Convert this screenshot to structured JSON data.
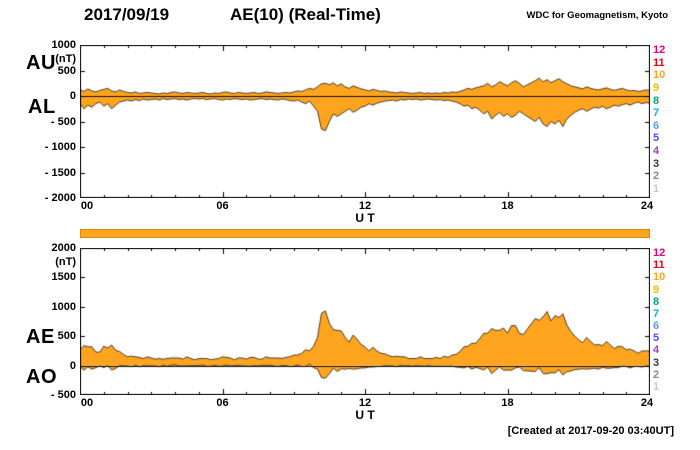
{
  "header": {
    "date": "2017/09/19",
    "title": "AE(10) (Real-Time)",
    "source": "WDC for Geomagnetism, Kyoto"
  },
  "footer": {
    "created": "[Created at 2017-09-20 03:40UT]"
  },
  "colors": {
    "plot_fill": "#FFA41E",
    "axis": "#000000",
    "background": "#FFFFFF"
  },
  "station_legend": {
    "values": [
      "12",
      "11",
      "10",
      "9",
      "8",
      "7",
      "6",
      "5",
      "4",
      "3",
      "2",
      "1"
    ],
    "colors": [
      "#E6007E",
      "#E60012",
      "#FFA41E",
      "#EDC000",
      "#00A878",
      "#00B8E6",
      "#6496FF",
      "#5050FF",
      "#A042C8",
      "#383838",
      "#8C8C8C",
      "#C8C8C8"
    ]
  },
  "chart_data": [
    {
      "type": "area",
      "panel": "top",
      "ylim": [
        -2000,
        1000
      ],
      "ylabel_unit": "(nT)",
      "y_ticks": [
        1000,
        500,
        0,
        -500,
        -1000,
        -1500,
        -2000
      ],
      "y_tick_labels": [
        "1000",
        "500",
        "0",
        "- 500",
        "- 1000",
        "- 1500",
        "- 2000"
      ],
      "x_ticks": [
        0,
        6,
        12,
        18,
        24
      ],
      "x_tick_labels": [
        "00",
        "06",
        "12",
        "18",
        "24"
      ],
      "x_label": "U T",
      "x_range_hours": [
        0,
        24
      ],
      "sample_interval_minutes": 10,
      "series": [
        {
          "name": "AU",
          "values": [
            120,
            90,
            140,
            100,
            80,
            110,
            130,
            150,
            100,
            80,
            120,
            90,
            70,
            60,
            80,
            50,
            60,
            70,
            60,
            50,
            40,
            60,
            50,
            70,
            80,
            60,
            50,
            70,
            60,
            50,
            60,
            70,
            50,
            40,
            60,
            50,
            70,
            80,
            60,
            50,
            70,
            60,
            50,
            60,
            70,
            50,
            60,
            80,
            70,
            60,
            50,
            60,
            70,
            60,
            80,
            100,
            90,
            120,
            150,
            130,
            180,
            240,
            250,
            220,
            260,
            200,
            240,
            180,
            150,
            200,
            170,
            140,
            120,
            100,
            130,
            110,
            90,
            100,
            80,
            70,
            60,
            80,
            70,
            60,
            50,
            60,
            70,
            50,
            60,
            50,
            60,
            50,
            70,
            60,
            80,
            70,
            90,
            120,
            150,
            130,
            160,
            180,
            200,
            250,
            180,
            220,
            280,
            240,
            200,
            260,
            300,
            250,
            180,
            220,
            260,
            300,
            350,
            280,
            320,
            260,
            300,
            340,
            280,
            240,
            200,
            180,
            160,
            140,
            180,
            150,
            130,
            120,
            140,
            160,
            130,
            110,
            130,
            150,
            120,
            100,
            110,
            90,
            100,
            120,
            110
          ]
        },
        {
          "name": "AL",
          "values": [
            -150,
            -250,
            -180,
            -220,
            -150,
            -120,
            -200,
            -150,
            -250,
            -180,
            -120,
            -100,
            -80,
            -100,
            -70,
            -90,
            -60,
            -80,
            -70,
            -60,
            -80,
            -50,
            -70,
            -60,
            -50,
            -70,
            -60,
            -80,
            -60,
            -50,
            -60,
            -50,
            -70,
            -60,
            -50,
            -70,
            -80,
            -60,
            -70,
            -50,
            -60,
            -70,
            -60,
            -80,
            -70,
            -60,
            -50,
            -70,
            -60,
            -70,
            -80,
            -60,
            -70,
            -90,
            -100,
            -80,
            -120,
            -150,
            -100,
            -200,
            -300,
            -650,
            -680,
            -500,
            -350,
            -400,
            -350,
            -300,
            -250,
            -320,
            -280,
            -220,
            -200,
            -150,
            -180,
            -140,
            -120,
            -100,
            -90,
            -80,
            -100,
            -70,
            -80,
            -60,
            -70,
            -60,
            -80,
            -70,
            -60,
            -70,
            -80,
            -70,
            -90,
            -80,
            -100,
            -120,
            -150,
            -200,
            -180,
            -250,
            -220,
            -280,
            -350,
            -300,
            -450,
            -380,
            -320,
            -400,
            -350,
            -420,
            -380,
            -300,
            -350,
            -400,
            -450,
            -500,
            -420,
            -550,
            -600,
            -500,
            -550,
            -480,
            -600,
            -450,
            -380,
            -320,
            -280,
            -250,
            -300,
            -260,
            -220,
            -240,
            -200,
            -250,
            -220,
            -180,
            -200,
            -170,
            -150,
            -180,
            -140,
            -120,
            -150,
            -130,
            -140
          ]
        }
      ]
    },
    {
      "type": "area",
      "panel": "bottom",
      "ylim": [
        -500,
        2000
      ],
      "ylabel_unit": "(nT)",
      "y_ticks": [
        2000,
        1500,
        1000,
        500,
        0,
        -500
      ],
      "y_tick_labels": [
        "2000",
        "1500",
        "1000",
        "500",
        "0",
        "- 500"
      ],
      "x_ticks": [
        0,
        6,
        12,
        18,
        24
      ],
      "x_tick_labels": [
        "00",
        "06",
        "12",
        "18",
        "24"
      ],
      "x_label": "U T",
      "x_range_hours": [
        0,
        24
      ],
      "sample_interval_minutes": 10,
      "series": [
        {
          "name": "AE",
          "values": [
            270,
            340,
            320,
            320,
            230,
            230,
            330,
            300,
            350,
            260,
            240,
            190,
            150,
            160,
            150,
            140,
            120,
            150,
            130,
            110,
            120,
            110,
            120,
            130,
            130,
            130,
            110,
            150,
            120,
            100,
            120,
            120,
            120,
            100,
            110,
            120,
            150,
            140,
            130,
            100,
            130,
            130,
            110,
            140,
            140,
            110,
            110,
            150,
            130,
            130,
            130,
            120,
            140,
            150,
            180,
            180,
            210,
            270,
            250,
            330,
            480,
            890,
            930,
            720,
            610,
            600,
            590,
            480,
            400,
            520,
            450,
            360,
            320,
            250,
            310,
            250,
            210,
            200,
            170,
            150,
            160,
            150,
            150,
            120,
            120,
            120,
            150,
            120,
            120,
            120,
            140,
            120,
            160,
            140,
            180,
            190,
            240,
            320,
            330,
            380,
            380,
            460,
            550,
            550,
            630,
            600,
            600,
            640,
            550,
            680,
            680,
            550,
            530,
            620,
            710,
            800,
            770,
            830,
            920,
            760,
            850,
            820,
            880,
            690,
            580,
            500,
            440,
            390,
            480,
            410,
            350,
            360,
            340,
            410,
            350,
            290,
            330,
            320,
            270,
            280,
            250,
            210,
            250,
            250,
            250
          ]
        },
        {
          "name": "AO",
          "values": [
            -15,
            -80,
            -20,
            -60,
            -35,
            -5,
            -35,
            0,
            -75,
            -50,
            0,
            -5,
            -5,
            -20,
            5,
            -20,
            0,
            -5,
            -5,
            -5,
            -20,
            5,
            -10,
            5,
            15,
            -5,
            -5,
            -5,
            0,
            0,
            0,
            10,
            -10,
            -10,
            5,
            -10,
            -5,
            10,
            -5,
            0,
            5,
            -5,
            -5,
            -10,
            0,
            -5,
            5,
            5,
            5,
            -5,
            -15,
            0,
            0,
            -15,
            -10,
            10,
            -15,
            -15,
            25,
            -35,
            -60,
            -205,
            -215,
            -140,
            -45,
            -100,
            -55,
            -60,
            -50,
            -60,
            -55,
            -40,
            -40,
            -25,
            -25,
            -15,
            -15,
            0,
            -5,
            -5,
            -20,
            5,
            -5,
            0,
            -10,
            0,
            -5,
            -10,
            0,
            -10,
            -10,
            -10,
            -10,
            -10,
            -10,
            -25,
            -30,
            -40,
            -15,
            -60,
            -30,
            -50,
            -75,
            -25,
            -135,
            -80,
            -20,
            -80,
            -75,
            -80,
            -40,
            -25,
            -85,
            -90,
            -95,
            -100,
            -35,
            -135,
            -140,
            -120,
            -125,
            -70,
            -160,
            -105,
            -90,
            -70,
            -60,
            -55,
            -60,
            -55,
            -45,
            -60,
            -30,
            -45,
            -45,
            -35,
            -35,
            -10,
            -15,
            -40,
            -15,
            -15,
            -25,
            -5,
            -15
          ]
        }
      ]
    }
  ]
}
